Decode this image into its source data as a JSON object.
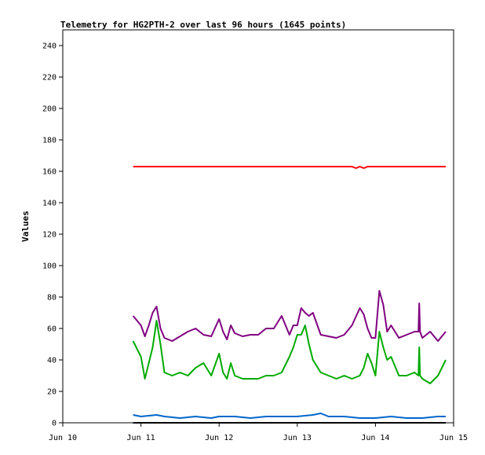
{
  "chart_data": {
    "type": "line",
    "title": "Telemetry for HG2PTH-2 over last 96 hours (1645 points)",
    "xlabel": "",
    "ylabel": "Values",
    "xlim": [
      "Jun 10",
      "Jun 15"
    ],
    "ylim": [
      0,
      250
    ],
    "x_ticks": [
      "Jun 10",
      "Jun 11",
      "Jun 12",
      "Jun 13",
      "Jun 14",
      "Jun 15"
    ],
    "y_ticks": [
      0,
      20,
      40,
      60,
      80,
      100,
      120,
      140,
      160,
      180,
      200,
      220,
      240
    ],
    "grid": false,
    "legend": "none",
    "series": [
      {
        "color": "#ff0000",
        "x": [
          10.9,
          11.0,
          11.5,
          12.0,
          12.5,
          13.0,
          13.5,
          13.7,
          13.75,
          13.8,
          13.85,
          13.9,
          14.0,
          14.5,
          14.9
        ],
        "y": [
          163,
          163,
          163,
          163,
          163,
          163,
          163,
          163,
          162,
          163,
          162,
          163,
          163,
          163,
          163
        ]
      },
      {
        "color": "#800080",
        "x": [
          10.9,
          11.0,
          11.05,
          11.1,
          11.15,
          11.2,
          11.25,
          11.3,
          11.4,
          11.5,
          11.6,
          11.7,
          11.8,
          11.9,
          12.0,
          12.05,
          12.1,
          12.15,
          12.2,
          12.3,
          12.4,
          12.5,
          12.6,
          12.7,
          12.8,
          12.9,
          12.95,
          13.0,
          13.05,
          13.1,
          13.15,
          13.2,
          13.3,
          13.4,
          13.5,
          13.6,
          13.7,
          13.8,
          13.85,
          13.9,
          13.95,
          14.0,
          14.05,
          14.1,
          14.15,
          14.2,
          14.3,
          14.4,
          14.5,
          14.55,
          14.56,
          14.57,
          14.6,
          14.7,
          14.8,
          14.9
        ],
        "y": [
          68,
          62,
          55,
          62,
          70,
          74,
          60,
          54,
          52,
          55,
          58,
          60,
          56,
          55,
          66,
          58,
          53,
          62,
          57,
          55,
          56,
          56,
          60,
          60,
          68,
          56,
          62,
          62,
          73,
          70,
          68,
          70,
          56,
          55,
          54,
          56,
          62,
          73,
          69,
          60,
          54,
          54,
          84,
          75,
          58,
          62,
          54,
          56,
          58,
          58,
          76,
          58,
          54,
          58,
          52,
          58
        ]
      },
      {
        "color": "#00aa00",
        "x": [
          10.9,
          11.0,
          11.05,
          11.1,
          11.15,
          11.2,
          11.25,
          11.3,
          11.4,
          11.5,
          11.6,
          11.7,
          11.8,
          11.9,
          12.0,
          12.05,
          12.1,
          12.15,
          12.2,
          12.3,
          12.4,
          12.5,
          12.6,
          12.7,
          12.8,
          12.9,
          12.95,
          13.0,
          13.05,
          13.1,
          13.15,
          13.2,
          13.3,
          13.4,
          13.5,
          13.6,
          13.7,
          13.8,
          13.85,
          13.9,
          13.95,
          14.0,
          14.05,
          14.1,
          14.15,
          14.2,
          14.3,
          14.4,
          14.5,
          14.55,
          14.56,
          14.57,
          14.6,
          14.7,
          14.8,
          14.9
        ],
        "y": [
          52,
          42,
          28,
          38,
          48,
          65,
          50,
          32,
          30,
          32,
          30,
          35,
          38,
          30,
          44,
          32,
          28,
          38,
          30,
          28,
          28,
          28,
          30,
          30,
          32,
          42,
          48,
          56,
          56,
          62,
          50,
          40,
          32,
          30,
          28,
          30,
          28,
          30,
          35,
          44,
          38,
          30,
          58,
          48,
          40,
          42,
          30,
          30,
          32,
          30,
          48,
          30,
          28,
          25,
          30,
          40
        ]
      },
      {
        "color": "#0066cc",
        "x": [
          10.9,
          11.0,
          11.2,
          11.3,
          11.5,
          11.7,
          11.9,
          12.0,
          12.2,
          12.4,
          12.6,
          12.8,
          13.0,
          13.2,
          13.3,
          13.4,
          13.6,
          13.8,
          14.0,
          14.2,
          14.4,
          14.6,
          14.8,
          14.9
        ],
        "y": [
          5,
          4,
          5,
          4,
          3,
          4,
          3,
          4,
          4,
          3,
          4,
          4,
          4,
          5,
          6,
          4,
          4,
          3,
          3,
          4,
          3,
          3,
          4,
          4
        ]
      },
      {
        "color": "#000000",
        "x": [
          10.9,
          11.5,
          12.0,
          12.5,
          13.0,
          13.5,
          14.0,
          14.5,
          14.9
        ],
        "y": [
          0,
          0,
          0,
          0,
          0,
          0,
          0,
          0,
          0
        ]
      }
    ]
  }
}
